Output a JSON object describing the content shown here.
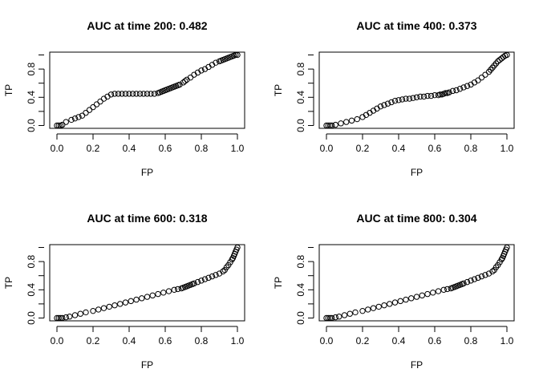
{
  "chart_data": [
    {
      "type": "scatter",
      "title": "AUC at time 200: 0.482",
      "xlabel": "FP",
      "ylabel": "TP",
      "xlim": [
        0,
        1
      ],
      "ylim": [
        0,
        1
      ],
      "xticks": [
        "0.0",
        "0.2",
        "0.4",
        "0.6",
        "0.8",
        "1.0"
      ],
      "yticks": [
        "0.0",
        "0.4",
        "0.8"
      ],
      "grid": false,
      "series": [
        {
          "x": [
            0.0,
            0.01,
            0.02,
            0.03,
            0.05,
            0.08,
            0.1,
            0.12,
            0.14,
            0.16,
            0.18,
            0.2,
            0.22,
            0.24,
            0.26,
            0.28,
            0.3,
            0.32,
            0.34,
            0.36,
            0.38,
            0.4,
            0.42,
            0.44,
            0.46,
            0.48,
            0.5,
            0.52,
            0.54,
            0.56,
            0.57,
            0.58,
            0.59,
            0.6,
            0.61,
            0.62,
            0.63,
            0.64,
            0.65,
            0.66,
            0.67,
            0.68,
            0.7,
            0.71,
            0.72,
            0.74,
            0.76,
            0.78,
            0.8,
            0.82,
            0.84,
            0.86,
            0.88,
            0.9,
            0.91,
            0.92,
            0.93,
            0.94,
            0.95,
            0.96,
            0.97,
            0.98,
            0.99,
            1.0
          ],
          "y": [
            0.0,
            0.0,
            0.0,
            0.01,
            0.05,
            0.08,
            0.1,
            0.12,
            0.14,
            0.18,
            0.22,
            0.26,
            0.3,
            0.34,
            0.38,
            0.41,
            0.44,
            0.45,
            0.45,
            0.45,
            0.45,
            0.45,
            0.45,
            0.45,
            0.45,
            0.45,
            0.45,
            0.45,
            0.45,
            0.46,
            0.47,
            0.48,
            0.49,
            0.5,
            0.51,
            0.52,
            0.53,
            0.54,
            0.55,
            0.56,
            0.57,
            0.58,
            0.61,
            0.63,
            0.65,
            0.68,
            0.72,
            0.75,
            0.78,
            0.8,
            0.83,
            0.86,
            0.89,
            0.91,
            0.92,
            0.93,
            0.94,
            0.95,
            0.96,
            0.97,
            0.98,
            0.99,
            1.0,
            1.0
          ]
        }
      ]
    },
    {
      "type": "scatter",
      "title": "AUC at time 400: 0.373",
      "xlabel": "FP",
      "ylabel": "TP",
      "xlim": [
        0,
        1
      ],
      "ylim": [
        0,
        1
      ],
      "xticks": [
        "0.0",
        "0.2",
        "0.4",
        "0.6",
        "0.8",
        "1.0"
      ],
      "yticks": [
        "0.0",
        "0.4",
        "0.8"
      ],
      "grid": false,
      "series": [
        {
          "x": [
            0.0,
            0.01,
            0.02,
            0.03,
            0.05,
            0.08,
            0.11,
            0.14,
            0.17,
            0.2,
            0.22,
            0.24,
            0.26,
            0.28,
            0.3,
            0.32,
            0.34,
            0.36,
            0.38,
            0.4,
            0.42,
            0.44,
            0.46,
            0.48,
            0.5,
            0.52,
            0.54,
            0.56,
            0.58,
            0.6,
            0.62,
            0.63,
            0.64,
            0.65,
            0.66,
            0.67,
            0.68,
            0.7,
            0.72,
            0.74,
            0.76,
            0.78,
            0.8,
            0.82,
            0.84,
            0.86,
            0.88,
            0.9,
            0.91,
            0.92,
            0.93,
            0.94,
            0.95,
            0.96,
            0.97,
            0.98,
            0.99,
            1.0
          ],
          "y": [
            0.0,
            0.0,
            0.0,
            0.0,
            0.01,
            0.03,
            0.05,
            0.07,
            0.09,
            0.12,
            0.15,
            0.18,
            0.21,
            0.24,
            0.27,
            0.29,
            0.31,
            0.33,
            0.35,
            0.36,
            0.37,
            0.38,
            0.38,
            0.39,
            0.4,
            0.41,
            0.41,
            0.42,
            0.42,
            0.43,
            0.43,
            0.44,
            0.44,
            0.45,
            0.46,
            0.46,
            0.47,
            0.49,
            0.5,
            0.52,
            0.54,
            0.56,
            0.58,
            0.61,
            0.64,
            0.68,
            0.72,
            0.76,
            0.79,
            0.82,
            0.85,
            0.88,
            0.91,
            0.93,
            0.95,
            0.97,
            0.99,
            1.0
          ]
        }
      ]
    },
    {
      "type": "scatter",
      "title": "AUC at time 600: 0.318",
      "xlabel": "FP",
      "ylabel": "TP",
      "xlim": [
        0,
        1
      ],
      "ylim": [
        0,
        1
      ],
      "xticks": [
        "0.0",
        "0.2",
        "0.4",
        "0.6",
        "0.8",
        "1.0"
      ],
      "yticks": [
        "0.0",
        "0.4",
        "0.8"
      ],
      "grid": false,
      "series": [
        {
          "x": [
            0.0,
            0.01,
            0.02,
            0.03,
            0.05,
            0.07,
            0.1,
            0.13,
            0.16,
            0.2,
            0.23,
            0.26,
            0.29,
            0.32,
            0.35,
            0.38,
            0.41,
            0.44,
            0.47,
            0.5,
            0.53,
            0.56,
            0.59,
            0.62,
            0.65,
            0.67,
            0.69,
            0.7,
            0.71,
            0.72,
            0.73,
            0.74,
            0.75,
            0.76,
            0.78,
            0.8,
            0.82,
            0.84,
            0.86,
            0.88,
            0.9,
            0.92,
            0.93,
            0.94,
            0.95,
            0.96,
            0.97,
            0.975,
            0.98,
            0.985,
            0.99,
            0.995,
            1.0
          ],
          "y": [
            0.0,
            0.0,
            0.0,
            0.0,
            0.01,
            0.02,
            0.04,
            0.06,
            0.08,
            0.1,
            0.12,
            0.14,
            0.16,
            0.18,
            0.2,
            0.22,
            0.24,
            0.26,
            0.28,
            0.3,
            0.32,
            0.34,
            0.36,
            0.38,
            0.4,
            0.41,
            0.42,
            0.43,
            0.44,
            0.45,
            0.46,
            0.47,
            0.48,
            0.49,
            0.51,
            0.53,
            0.55,
            0.57,
            0.59,
            0.61,
            0.63,
            0.66,
            0.68,
            0.72,
            0.75,
            0.79,
            0.83,
            0.85,
            0.88,
            0.91,
            0.94,
            0.97,
            1.0
          ]
        }
      ]
    },
    {
      "type": "scatter",
      "title": "AUC at time 800: 0.304",
      "xlabel": "FP",
      "ylabel": "TP",
      "xlim": [
        0,
        1
      ],
      "ylim": [
        0,
        1
      ],
      "xticks": [
        "0.0",
        "0.2",
        "0.4",
        "0.6",
        "0.8",
        "1.0"
      ],
      "yticks": [
        "0.0",
        "0.4",
        "0.8"
      ],
      "grid": false,
      "series": [
        {
          "x": [
            0.0,
            0.01,
            0.02,
            0.03,
            0.05,
            0.07,
            0.1,
            0.13,
            0.16,
            0.2,
            0.23,
            0.26,
            0.29,
            0.32,
            0.35,
            0.38,
            0.41,
            0.44,
            0.47,
            0.5,
            0.53,
            0.56,
            0.59,
            0.62,
            0.65,
            0.67,
            0.69,
            0.7,
            0.71,
            0.72,
            0.73,
            0.74,
            0.75,
            0.76,
            0.78,
            0.8,
            0.82,
            0.84,
            0.86,
            0.88,
            0.9,
            0.92,
            0.93,
            0.94,
            0.95,
            0.96,
            0.97,
            0.975,
            0.98,
            0.985,
            0.99,
            0.995,
            1.0
          ],
          "y": [
            0.0,
            0.0,
            0.0,
            0.0,
            0.01,
            0.02,
            0.04,
            0.06,
            0.08,
            0.1,
            0.12,
            0.14,
            0.16,
            0.18,
            0.2,
            0.22,
            0.24,
            0.26,
            0.28,
            0.3,
            0.32,
            0.34,
            0.36,
            0.38,
            0.4,
            0.41,
            0.42,
            0.43,
            0.44,
            0.45,
            0.46,
            0.47,
            0.48,
            0.49,
            0.51,
            0.53,
            0.55,
            0.57,
            0.59,
            0.61,
            0.63,
            0.66,
            0.68,
            0.72,
            0.75,
            0.79,
            0.83,
            0.85,
            0.88,
            0.91,
            0.94,
            0.97,
            1.0
          ]
        }
      ]
    }
  ]
}
